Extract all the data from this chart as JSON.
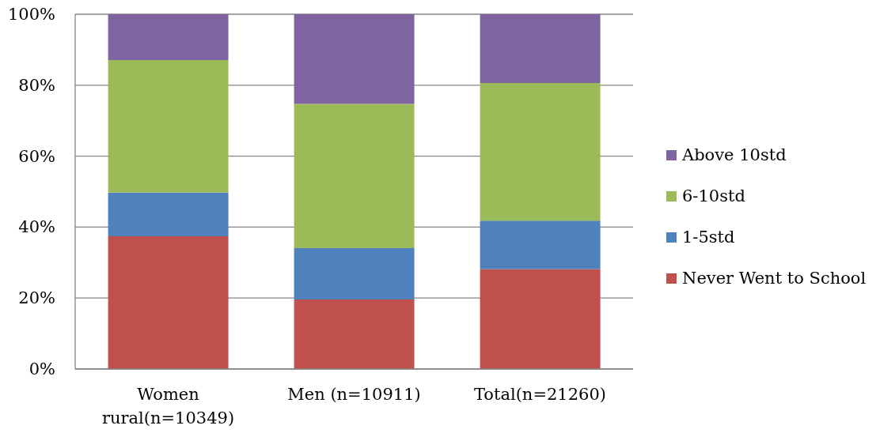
{
  "chart_data": {
    "type": "bar",
    "stacked": true,
    "categories": [
      "Women rural(n=10349)",
      "Men (n=10911)",
      "Total(n=21260)"
    ],
    "series": [
      {
        "name": "Never Went to School",
        "color": "#c0504d",
        "values": [
          37.4,
          19.6,
          28.2
        ]
      },
      {
        "name": "1-5std",
        "color": "#4f81bd",
        "values": [
          12.3,
          14.5,
          13.6
        ]
      },
      {
        "name": "6-10std",
        "color": "#9bbb59",
        "values": [
          37.4,
          40.6,
          38.8
        ]
      },
      {
        "name": "Above 10std",
        "color": "#8064a2",
        "values": [
          12.9,
          25.3,
          19.4
        ]
      }
    ],
    "ylim": [
      0,
      100
    ],
    "yticks": [
      {
        "value": 0,
        "label": "0%"
      },
      {
        "value": 20,
        "label": "20%"
      },
      {
        "value": 40,
        "label": "40%"
      },
      {
        "value": 60,
        "label": "60%"
      },
      {
        "value": 80,
        "label": "80%"
      },
      {
        "value": 100,
        "label": "100%"
      }
    ],
    "grid": "y",
    "legend": "right"
  }
}
